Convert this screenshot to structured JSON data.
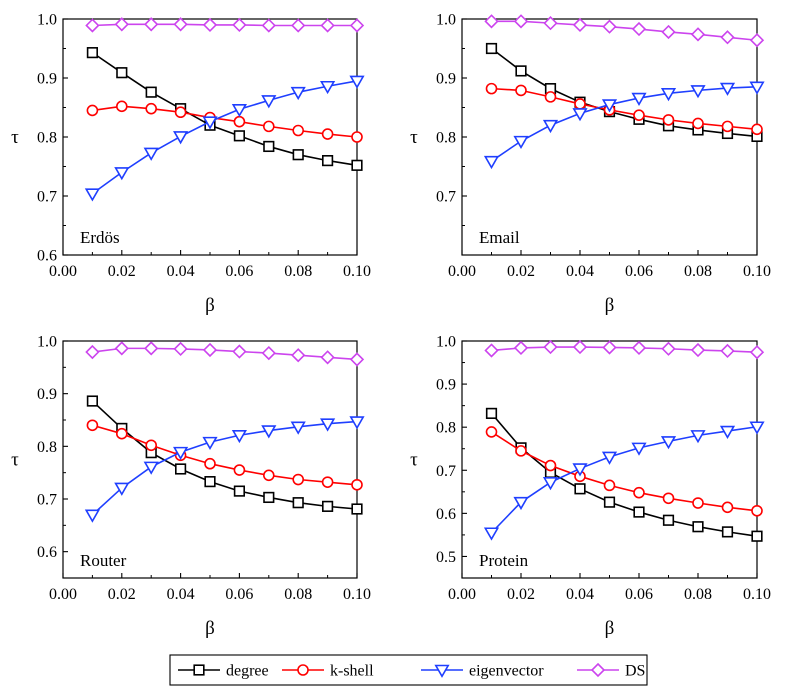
{
  "colors": {
    "degree": "#000000",
    "k-shell": "#ff0000",
    "eigenvector": "#1f3fff",
    "DS": "#cc44ee"
  },
  "legend": {
    "items": [
      {
        "key": "degree",
        "label": "degree",
        "marker": "square"
      },
      {
        "key": "k-shell",
        "label": "k-shell",
        "marker": "circle"
      },
      {
        "key": "eigenvector",
        "label": "eigenvector",
        "marker": "triangle-down"
      },
      {
        "key": "DS",
        "label": "DS",
        "marker": "diamond"
      }
    ]
  },
  "chart_data": [
    {
      "type": "line",
      "panel_label": "Erdös",
      "xlabel": "β",
      "ylabel": "τ",
      "xlim": [
        0.0,
        0.1
      ],
      "ylim": [
        0.6,
        1.0
      ],
      "xticks": [
        "0.00",
        "0.02",
        "0.04",
        "0.06",
        "0.08",
        "0.10"
      ],
      "yticks": [
        "0.6",
        "0.7",
        "0.8",
        "0.9",
        "1.0"
      ],
      "x": [
        0.01,
        0.02,
        0.03,
        0.04,
        0.05,
        0.06,
        0.07,
        0.08,
        0.09,
        0.1
      ],
      "series": [
        {
          "name": "degree",
          "values": [
            0.943,
            0.909,
            0.876,
            0.848,
            0.82,
            0.802,
            0.784,
            0.77,
            0.76,
            0.752
          ]
        },
        {
          "name": "k-shell",
          "values": [
            0.845,
            0.852,
            0.848,
            0.842,
            0.833,
            0.826,
            0.818,
            0.811,
            0.805,
            0.8
          ]
        },
        {
          "name": "eigenvector",
          "values": [
            0.704,
            0.74,
            0.773,
            0.801,
            0.826,
            0.847,
            0.862,
            0.876,
            0.886,
            0.895
          ]
        },
        {
          "name": "DS",
          "values": [
            0.989,
            0.991,
            0.991,
            0.991,
            0.99,
            0.99,
            0.989,
            0.989,
            0.989,
            0.989
          ]
        }
      ]
    },
    {
      "type": "line",
      "panel_label": "Email",
      "xlabel": "β",
      "ylabel": "τ",
      "xlim": [
        0.0,
        0.1
      ],
      "ylim": [
        0.6,
        1.0
      ],
      "xticks": [
        "0.00",
        "0.02",
        "0.04",
        "0.06",
        "0.08",
        "0.10"
      ],
      "yticks": [
        "0.7",
        "0.8",
        "0.9",
        "1.0"
      ],
      "x": [
        0.01,
        0.02,
        0.03,
        0.04,
        0.05,
        0.06,
        0.07,
        0.08,
        0.09,
        0.1
      ],
      "series": [
        {
          "name": "degree",
          "values": [
            0.95,
            0.912,
            0.882,
            0.859,
            0.843,
            0.83,
            0.819,
            0.812,
            0.806,
            0.801
          ]
        },
        {
          "name": "k-shell",
          "values": [
            0.882,
            0.879,
            0.868,
            0.856,
            0.846,
            0.837,
            0.829,
            0.823,
            0.818,
            0.813
          ]
        },
        {
          "name": "eigenvector",
          "values": [
            0.759,
            0.793,
            0.82,
            0.84,
            0.855,
            0.866,
            0.874,
            0.879,
            0.883,
            0.885
          ]
        },
        {
          "name": "DS",
          "values": [
            0.996,
            0.996,
            0.993,
            0.99,
            0.987,
            0.983,
            0.978,
            0.974,
            0.969,
            0.964
          ]
        }
      ]
    },
    {
      "type": "line",
      "panel_label": "Router",
      "xlabel": "β",
      "ylabel": "τ",
      "xlim": [
        0.0,
        0.1
      ],
      "ylim": [
        0.55,
        1.0
      ],
      "xticks": [
        "0.00",
        "0.02",
        "0.04",
        "0.06",
        "0.08",
        "0.10"
      ],
      "yticks": [
        "0.6",
        "0.7",
        "0.8",
        "0.9",
        "1.0"
      ],
      "x": [
        0.01,
        0.02,
        0.03,
        0.04,
        0.05,
        0.06,
        0.07,
        0.08,
        0.09,
        0.1
      ],
      "series": [
        {
          "name": "degree",
          "values": [
            0.886,
            0.834,
            0.788,
            0.757,
            0.733,
            0.715,
            0.703,
            0.693,
            0.686,
            0.681
          ]
        },
        {
          "name": "k-shell",
          "values": [
            0.84,
            0.824,
            0.802,
            0.783,
            0.767,
            0.755,
            0.745,
            0.737,
            0.732,
            0.727
          ]
        },
        {
          "name": "eigenvector",
          "values": [
            0.67,
            0.721,
            0.761,
            0.789,
            0.808,
            0.821,
            0.83,
            0.837,
            0.843,
            0.847
          ]
        },
        {
          "name": "DS",
          "values": [
            0.979,
            0.986,
            0.986,
            0.985,
            0.983,
            0.98,
            0.977,
            0.973,
            0.969,
            0.965
          ]
        }
      ]
    },
    {
      "type": "line",
      "panel_label": "Protein",
      "xlabel": "β",
      "ylabel": "τ",
      "xlim": [
        0.0,
        0.1
      ],
      "ylim": [
        0.45,
        1.0
      ],
      "xticks": [
        "0.00",
        "0.02",
        "0.04",
        "0.06",
        "0.08",
        "0.10"
      ],
      "yticks": [
        "0.5",
        "0.6",
        "0.7",
        "0.8",
        "0.9",
        "1.0"
      ],
      "x": [
        0.01,
        0.02,
        0.03,
        0.04,
        0.05,
        0.06,
        0.07,
        0.08,
        0.09,
        0.1
      ],
      "series": [
        {
          "name": "degree",
          "values": [
            0.832,
            0.752,
            0.695,
            0.657,
            0.626,
            0.603,
            0.584,
            0.569,
            0.557,
            0.547
          ]
        },
        {
          "name": "k-shell",
          "values": [
            0.789,
            0.745,
            0.711,
            0.686,
            0.665,
            0.648,
            0.635,
            0.624,
            0.614,
            0.606
          ]
        },
        {
          "name": "eigenvector",
          "values": [
            0.555,
            0.626,
            0.672,
            0.704,
            0.731,
            0.752,
            0.767,
            0.781,
            0.791,
            0.801
          ]
        },
        {
          "name": "DS",
          "values": [
            0.978,
            0.984,
            0.986,
            0.986,
            0.985,
            0.984,
            0.982,
            0.979,
            0.977,
            0.974
          ]
        }
      ]
    }
  ]
}
